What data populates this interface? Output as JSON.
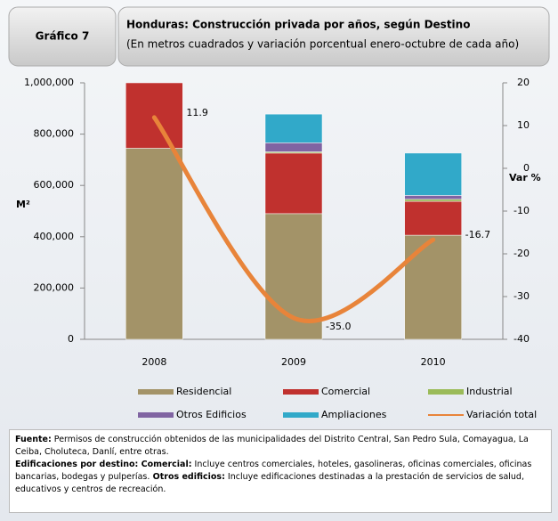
{
  "header": {
    "label": "Gráfico 7"
  },
  "chart_data": {
    "type": "bar",
    "stacked": true,
    "title": "Honduras:  Construcción privada por años, según Destino",
    "subtitle": "(En metros cuadrados y variación porcentual enero-octubre  de cada año)",
    "y_label": "M²",
    "y2_label": "Var %",
    "categories": [
      "2008",
      "2009",
      "2010"
    ],
    "series": [
      {
        "name": "Residencial",
        "color": "#a39368",
        "values": [
          745000,
          490000,
          406000
        ]
      },
      {
        "name": "Comercial",
        "color": "#c0312e",
        "values": [
          255000,
          236000,
          132000
        ]
      },
      {
        "name": "Industrial",
        "color": "#9bbb59",
        "values": [
          0,
          5000,
          8000
        ]
      },
      {
        "name": "Otros Edificios",
        "color": "#8064a2",
        "values": [
          0,
          35000,
          15000
        ]
      },
      {
        "name": "Ampliaciones",
        "color": "#31a9c9",
        "values": [
          0,
          112000,
          165000
        ]
      },
      {
        "name": "Variación total",
        "color": "#e8843a",
        "type": "line",
        "axis": "y2",
        "values": [
          11.9,
          -35.0,
          -16.7
        ],
        "value_labels": [
          "11.9",
          "-35.0",
          "-16.7"
        ]
      }
    ],
    "ylim": [
      0,
      1000000
    ],
    "yticks": [
      0,
      {
        "value": 200000,
        "label": "200,000"
      },
      {
        "value": 400000,
        "label": "400,000"
      },
      {
        "value": 600000,
        "label": "600,000"
      },
      {
        "value": 800000,
        "label": "800,000"
      },
      {
        "value": 1000000,
        "label": "1,000,000"
      }
    ],
    "y2lim": [
      -40,
      20
    ],
    "y2ticks": [
      -40,
      -30,
      -20,
      -10,
      0,
      10,
      20
    ]
  },
  "notes": [
    "Fuente:",
    " Permisos de construcción obtenidos de las municipalidades del Distrito Central, San Pedro Sula, Comayagua, La Ceiba, Choluteca, Danlí, entre otras.",
    "Edificaciones por destino: Comercial:",
    " Incluye centros comerciales, hoteles, gasolineras, oficinas comerciales, oficinas bancarias, bodegas y pulperías.",
    " Otros edificios:",
    " Incluye edificaciones destinadas a la prestación de servicios de salud, educativos y centros de recreación."
  ]
}
